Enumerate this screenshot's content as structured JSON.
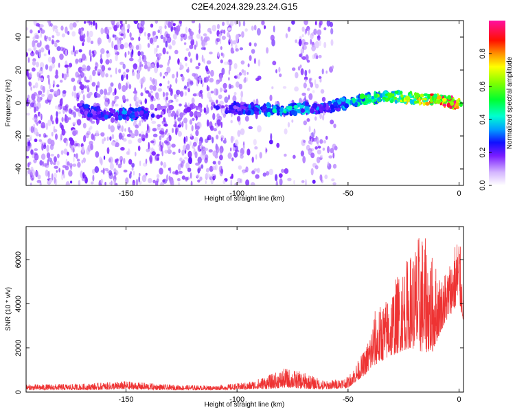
{
  "title": "C2E4.2024.329.23.24.G15",
  "chart_data": [
    {
      "type": "heatmap",
      "xlabel": "Height of straight line (km)",
      "ylabel": "Frequency (Hz)",
      "xlim": [
        -195,
        2
      ],
      "ylim": [
        -50,
        50
      ],
      "xticks": [
        -150,
        -100,
        -50,
        0
      ],
      "yticks": [
        -40,
        -20,
        0,
        20,
        40
      ],
      "colorbar": {
        "label": "Normalized spectral amplitude",
        "range": [
          0,
          1
        ],
        "ticks": [
          0.0,
          0.2,
          0.4,
          0.6,
          0.8
        ]
      },
      "ridge": [
        {
          "x": -172,
          "y": -3,
          "amp": 0.25
        },
        {
          "x": -160,
          "y": -7,
          "amp": 0.3
        },
        {
          "x": -150,
          "y": -7,
          "amp": 0.35
        },
        {
          "x": -130,
          "y": -5,
          "amp": 0.15
        },
        {
          "x": -100,
          "y": -3,
          "amp": 0.25
        },
        {
          "x": -90,
          "y": -4,
          "amp": 0.35
        },
        {
          "x": -80,
          "y": -4,
          "amp": 0.45
        },
        {
          "x": -70,
          "y": -3,
          "amp": 0.4
        },
        {
          "x": -62,
          "y": -3,
          "amp": 0.3
        },
        {
          "x": -50,
          "y": 0,
          "amp": 0.4
        },
        {
          "x": -40,
          "y": 3,
          "amp": 0.55
        },
        {
          "x": -30,
          "y": 4,
          "amp": 0.6
        },
        {
          "x": -20,
          "y": 3,
          "amp": 0.75
        },
        {
          "x": -10,
          "y": 2,
          "amp": 0.85
        },
        {
          "x": -3,
          "y": 0,
          "amp": 0.95
        },
        {
          "x": 1,
          "y": -1,
          "amp": 0.9
        }
      ]
    },
    {
      "type": "line",
      "xlabel": "Height of straight line (km)",
      "ylabel": "SNR (10 * v/v)",
      "xlim": [
        -195,
        2
      ],
      "ylim": [
        0,
        7500
      ],
      "xticks": [
        -150,
        -100,
        -50,
        0
      ],
      "yticks": [
        0,
        2000,
        4000,
        6000
      ],
      "series": [
        {
          "color": "#ee3333",
          "envelope": [
            {
              "x": -195,
              "lo": 100,
              "hi": 350
            },
            {
              "x": -170,
              "lo": 100,
              "hi": 380
            },
            {
              "x": -150,
              "lo": 120,
              "hi": 500
            },
            {
              "x": -130,
              "lo": 100,
              "hi": 330
            },
            {
              "x": -110,
              "lo": 100,
              "hi": 300
            },
            {
              "x": -95,
              "lo": 120,
              "hi": 450
            },
            {
              "x": -85,
              "lo": 150,
              "hi": 800
            },
            {
              "x": -78,
              "lo": 200,
              "hi": 1100
            },
            {
              "x": -70,
              "lo": 150,
              "hi": 900
            },
            {
              "x": -60,
              "lo": 120,
              "hi": 500
            },
            {
              "x": -50,
              "lo": 200,
              "hi": 700
            },
            {
              "x": -42,
              "lo": 800,
              "hi": 2000
            },
            {
              "x": -38,
              "lo": 1200,
              "hi": 3700
            },
            {
              "x": -33,
              "lo": 1500,
              "hi": 4200
            },
            {
              "x": -27,
              "lo": 1800,
              "hi": 5500
            },
            {
              "x": -22,
              "lo": 2000,
              "hi": 6300
            },
            {
              "x": -17,
              "lo": 1800,
              "hi": 7400
            },
            {
              "x": -12,
              "lo": 1800,
              "hi": 6200
            },
            {
              "x": -8,
              "lo": 2800,
              "hi": 5200
            },
            {
              "x": -4,
              "lo": 3500,
              "hi": 6000
            },
            {
              "x": 0,
              "lo": 4000,
              "hi": 7500
            },
            {
              "x": 2,
              "lo": 3200,
              "hi": 4300
            }
          ]
        }
      ]
    }
  ]
}
